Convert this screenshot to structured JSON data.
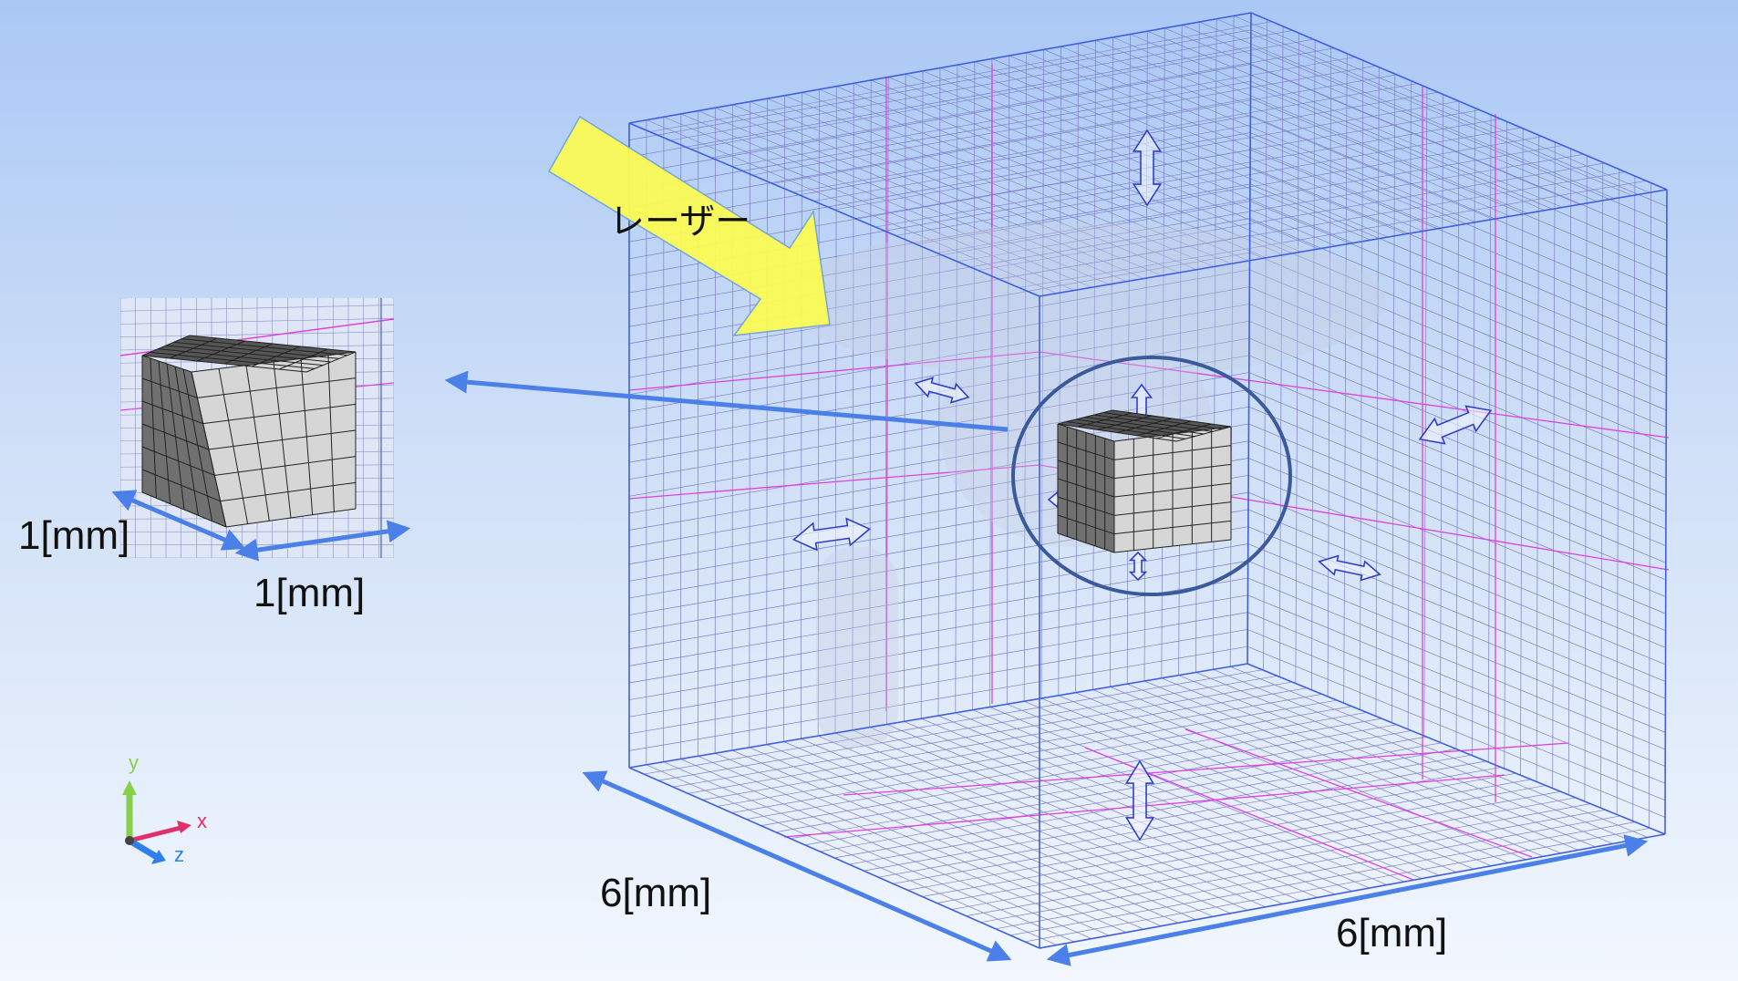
{
  "labels": {
    "laser": "レーザー",
    "inset_dim_left": "1[mm]",
    "inset_dim_bottom": "1[mm]",
    "domain_dim_left": "6[mm]",
    "domain_dim_right": "6[mm]"
  },
  "axes": {
    "y": "y",
    "x": "x",
    "z": "z"
  },
  "colors": {
    "grid_line": "#7d7dc8",
    "domain_edge": "#3f5fe0",
    "partition_line": "#e040e0",
    "dimension_arrow": "#4a80e8",
    "laser_arrow_fill": "#fbfb55",
    "laser_arrow_stroke": "#6fa3dc",
    "cube_fill": "#8a8a8a",
    "callout_circle": "#3a5a9c",
    "axis_y": "#88d04a",
    "axis_x": "#e0306a",
    "axis_z": "#2f7fe8"
  },
  "icons": [
    "double-arrow-icon",
    "laser-arrow-icon",
    "axis-triad-icon"
  ]
}
